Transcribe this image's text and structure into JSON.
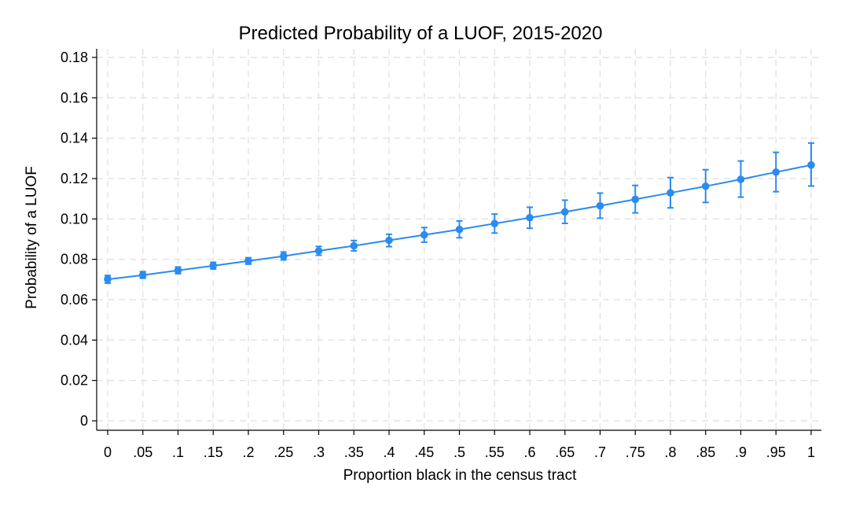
{
  "chart_data": {
    "type": "line",
    "title": "Predicted Probability of a LUOF, 2015-2020",
    "xlabel": "Proportion black in the census tract",
    "ylabel": "Probability of a LUOF",
    "xlim": [
      0,
      1
    ],
    "ylim": [
      0,
      0.18
    ],
    "x_ticks": [
      0,
      0.05,
      0.1,
      0.15,
      0.2,
      0.25,
      0.3,
      0.35,
      0.4,
      0.45,
      0.5,
      0.55,
      0.6,
      0.65,
      0.7,
      0.75,
      0.8,
      0.85,
      0.9,
      0.95,
      1
    ],
    "x_tick_labels": [
      "0",
      ".05",
      ".1",
      ".15",
      ".2",
      ".25",
      ".3",
      ".35",
      ".4",
      ".45",
      ".5",
      ".55",
      ".6",
      ".65",
      ".7",
      ".75",
      ".8",
      ".85",
      ".9",
      ".95",
      "1"
    ],
    "y_ticks": [
      0,
      0.02,
      0.04,
      0.06,
      0.08,
      0.1,
      0.12,
      0.14,
      0.16,
      0.18
    ],
    "y_tick_labels": [
      "0",
      "0.02",
      "0.04",
      "0.06",
      "0.08",
      "0.10",
      "0.12",
      "0.14",
      "0.16",
      "0.18"
    ],
    "grid": true,
    "color": "#2a8bf0",
    "series": [
      {
        "x": [
          0,
          0.05,
          0.1,
          0.15,
          0.2,
          0.25,
          0.3,
          0.35,
          0.4,
          0.45,
          0.5,
          0.55,
          0.6,
          0.65,
          0.7,
          0.75,
          0.8,
          0.85,
          0.9,
          0.95,
          1
        ],
        "y": [
          0.0701,
          0.0722,
          0.0745,
          0.0768,
          0.0792,
          0.0816,
          0.0842,
          0.0867,
          0.0894,
          0.0921,
          0.0948,
          0.0977,
          0.1006,
          0.1035,
          0.1065,
          0.1097,
          0.1129,
          0.1162,
          0.1196,
          0.1232,
          0.1267
        ],
        "lower": [
          0.0682,
          0.0706,
          0.0729,
          0.0752,
          0.0776,
          0.0797,
          0.082,
          0.0842,
          0.0863,
          0.0885,
          0.0907,
          0.093,
          0.0954,
          0.0978,
          0.1004,
          0.103,
          0.1055,
          0.1082,
          0.1108,
          0.1135,
          0.1163
        ],
        "upper": [
          0.072,
          0.0739,
          0.0762,
          0.0785,
          0.0808,
          0.0836,
          0.0864,
          0.0893,
          0.0924,
          0.0957,
          0.099,
          0.1024,
          0.1058,
          0.1093,
          0.1128,
          0.1166,
          0.1205,
          0.1244,
          0.1287,
          0.133,
          0.1376
        ]
      }
    ]
  }
}
